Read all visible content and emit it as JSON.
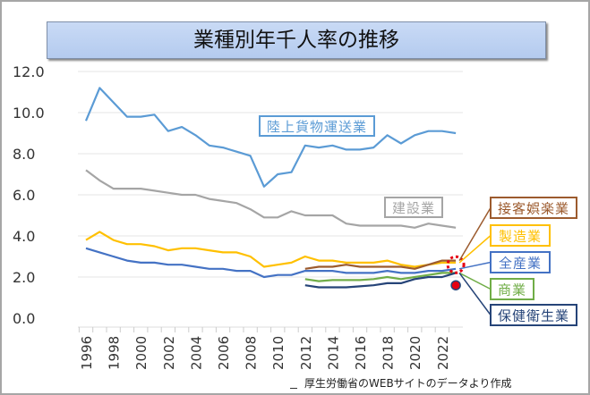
{
  "chart_data": {
    "type": "line",
    "title": "業種別年千人率の推移",
    "source_note": "厚生労働省のWEBサイトのデータより作成",
    "x": [
      1996,
      1997,
      1998,
      1999,
      2000,
      2001,
      2002,
      2003,
      2004,
      2005,
      2006,
      2007,
      2008,
      2009,
      2010,
      2011,
      2012,
      2013,
      2014,
      2015,
      2016,
      2017,
      2018,
      2019,
      2020,
      2021,
      2022,
      2023
    ],
    "xtick_labels": [
      "1996",
      "1998",
      "2000",
      "2002",
      "2004",
      "2006",
      "2008",
      "2010",
      "2012",
      "2014",
      "2016",
      "2018",
      "2020",
      "2022"
    ],
    "ylim": [
      0,
      12
    ],
    "ytick_labels": [
      "0.0",
      "2.0",
      "4.0",
      "6.0",
      "8.0",
      "10.0",
      "12.0"
    ],
    "grid": true,
    "series": [
      {
        "name": "陸上貨物運送業",
        "color": "#5b9bd5",
        "values": [
          9.6,
          11.2,
          10.5,
          9.8,
          9.8,
          9.9,
          9.1,
          9.3,
          8.9,
          8.4,
          8.3,
          8.1,
          7.9,
          6.4,
          7.0,
          7.1,
          8.4,
          8.3,
          8.4,
          8.2,
          8.2,
          8.3,
          8.9,
          8.5,
          8.9,
          9.1,
          9.1,
          9.0
        ]
      },
      {
        "name": "建設業",
        "color": "#a5a5a5",
        "values": [
          7.2,
          6.7,
          6.3,
          6.3,
          6.3,
          6.2,
          6.1,
          6.0,
          6.0,
          5.8,
          5.7,
          5.6,
          5.3,
          4.9,
          4.9,
          5.2,
          5.0,
          5.0,
          5.0,
          4.6,
          4.5,
          4.5,
          4.5,
          4.5,
          4.4,
          4.6,
          4.5,
          4.4
        ]
      },
      {
        "name": "製造業",
        "color": "#ffc000",
        "values": [
          3.8,
          4.2,
          3.8,
          3.6,
          3.6,
          3.5,
          3.3,
          3.4,
          3.4,
          3.3,
          3.2,
          3.2,
          3.0,
          2.5,
          2.6,
          2.7,
          3.0,
          2.8,
          2.8,
          2.7,
          2.7,
          2.7,
          2.8,
          2.6,
          2.5,
          2.6,
          2.7,
          2.7
        ]
      },
      {
        "name": "全産業",
        "color": "#4472c4",
        "values": [
          3.4,
          3.2,
          3.0,
          2.8,
          2.7,
          2.7,
          2.6,
          2.6,
          2.5,
          2.4,
          2.4,
          2.3,
          2.3,
          2.0,
          2.1,
          2.1,
          2.3,
          2.3,
          2.3,
          2.2,
          2.2,
          2.2,
          2.3,
          2.2,
          2.2,
          2.3,
          2.3,
          2.4
        ]
      },
      {
        "name": "接客娯楽業",
        "color": "#9c5b2e",
        "values": [
          null,
          null,
          null,
          null,
          null,
          null,
          null,
          null,
          null,
          null,
          null,
          null,
          null,
          null,
          null,
          null,
          2.4,
          2.5,
          2.5,
          2.6,
          2.5,
          2.5,
          2.5,
          2.5,
          2.4,
          2.6,
          2.8,
          2.8
        ]
      },
      {
        "name": "商業",
        "color": "#70ad47",
        "values": [
          null,
          null,
          null,
          null,
          null,
          null,
          null,
          null,
          null,
          null,
          null,
          null,
          null,
          null,
          null,
          null,
          1.9,
          1.8,
          1.85,
          1.85,
          1.85,
          1.9,
          2.0,
          1.9,
          2.0,
          2.1,
          2.2,
          2.2
        ]
      },
      {
        "name": "保健衛生業",
        "color": "#264478",
        "values": [
          null,
          null,
          null,
          null,
          null,
          null,
          null,
          null,
          null,
          null,
          null,
          null,
          null,
          null,
          null,
          null,
          1.6,
          1.5,
          1.5,
          1.5,
          1.55,
          1.6,
          1.7,
          1.7,
          1.9,
          2.0,
          2.0,
          2.2
        ]
      }
    ],
    "annotations": {
      "highlight_marker_color": "#e60012",
      "highlight_year": 2023
    }
  }
}
